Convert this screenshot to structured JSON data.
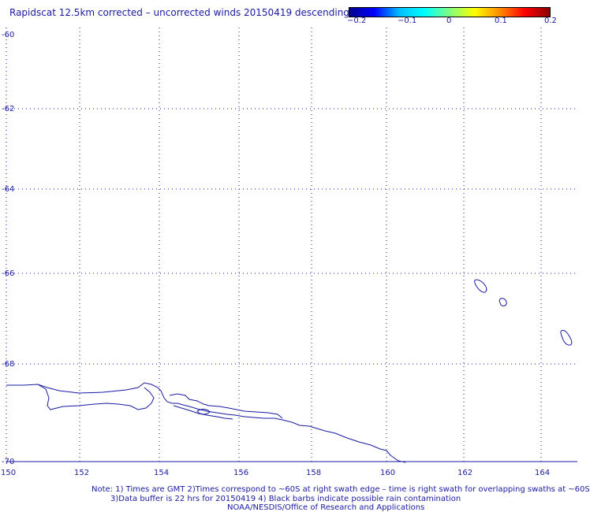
{
  "title": "Rapidscat 12.5km corrected – uncorrected winds 20150419 descending",
  "colorbar": {
    "colors": [
      "#00008b",
      "#0000ff",
      "#00bfff",
      "#00ffff",
      "#7fff7f",
      "#ffff00",
      "#ff8c00",
      "#ff0000",
      "#8b0000"
    ],
    "ticks": [
      "−0.2",
      "−0.1",
      "0",
      "0.1",
      "0.2"
    ]
  },
  "map": {
    "lon_ticks": [
      "150",
      "152",
      "154",
      "156",
      "158",
      "160",
      "162",
      "164"
    ],
    "lat_ticks": [
      "-60",
      "-62",
      "-64",
      "-66",
      "-68",
      "-70"
    ],
    "coast_color": "#1a1aa0",
    "grid_style": "dotted"
  },
  "notes": {
    "line1": "Note: 1) Times are GMT 2)Times correspond to ~60S at right swath edge – time is right swath for overlapping swaths at ~60S",
    "line2": "3)Data buffer is 22 hrs for 20150419 4) Black barbs indicate possible rain contamination",
    "line3": "NOAA/NESDIS/Office of Research and Applications"
  }
}
